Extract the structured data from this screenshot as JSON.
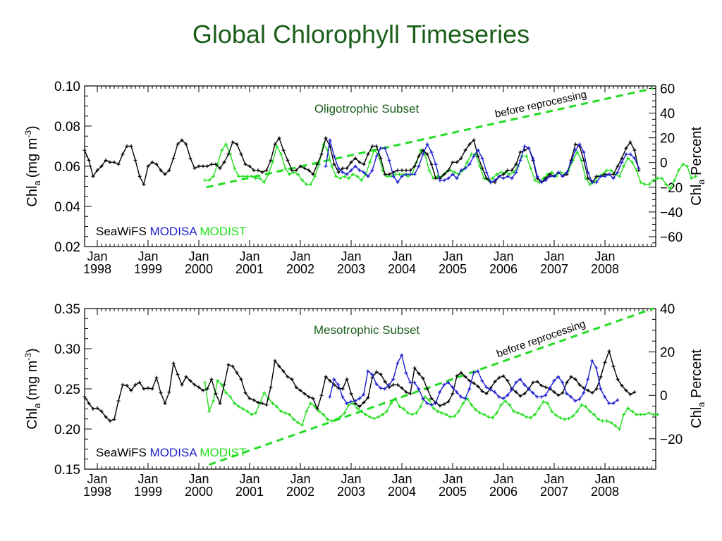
{
  "page": {
    "title": "Global Chlorophyll Timeseries"
  },
  "colors": {
    "title": "#1a5e1a",
    "seawifs": "#000000",
    "modisa": "#1c1ccf",
    "modist": "#22e01e",
    "reprocessing": "#22dd22",
    "subset_title": "#1a5e1a"
  },
  "chart_data": [
    {
      "type": "line",
      "title": "Oligotrophic Subset",
      "ylabel": "Chl",
      "ylabel_sub": "a",
      "ylabel_unit": "(mg m",
      "ylabel_sup": "-3",
      "ylabel_close": ")",
      "ylim": [
        0.02,
        0.1
      ],
      "yticks": [
        0.02,
        0.04,
        0.06,
        0.08,
        0.1
      ],
      "ytick_labels": [
        "0.02",
        "0.04",
        "0.06",
        "0.08",
        "0.10"
      ],
      "y2label": "Chl",
      "y2label_sub": "a",
      "y2label_rest": " Percent",
      "y2lim": [
        -68,
        62
      ],
      "y2ticks": [
        -60,
        -40,
        -20,
        0,
        20,
        40,
        60
      ],
      "y2tick_labels": [
        "−60",
        "−40",
        "−20",
        "0",
        "20",
        "40",
        "60"
      ],
      "xlim": [
        1997.75,
        2009.0
      ],
      "xticks": [
        1998,
        1999,
        2000,
        2001,
        2002,
        2003,
        2004,
        2005,
        2006,
        2007,
        2008
      ],
      "xtick_month": "Jan",
      "xtick_years": [
        "1998",
        "1999",
        "2000",
        "2001",
        "2002",
        "2003",
        "2004",
        "2005",
        "2006",
        "2007",
        "2008"
      ],
      "legend": {
        "items": [
          "SeaWiFS",
          "MODISA",
          "MODIST"
        ],
        "position": "bottom-left"
      },
      "annotation": {
        "text": "before reprocessing",
        "start": [
          2000.15,
          -20
        ],
        "end": [
          2008.95,
          60
        ]
      },
      "series": [
        {
          "name": "SeaWiFS",
          "start": 1997.75,
          "values": [
            0.068,
            0.063,
            0.055,
            0.058,
            0.06,
            0.063,
            0.062,
            0.062,
            0.061,
            0.066,
            0.07,
            0.07,
            0.063,
            0.055,
            0.051,
            0.06,
            0.062,
            0.061,
            0.058,
            0.056,
            0.058,
            0.064,
            0.071,
            0.073,
            0.071,
            0.064,
            0.059,
            0.06,
            0.06,
            0.06,
            0.061,
            0.061,
            0.059,
            0.062,
            0.066,
            0.072,
            0.071,
            0.066,
            0.061,
            0.06,
            0.058,
            0.058,
            0.057,
            0.058,
            0.063,
            0.071,
            0.074,
            0.068,
            0.063,
            0.058,
            0.058,
            0.06,
            0.059,
            0.058,
            0.056,
            0.061,
            0.066,
            0.074,
            0.07,
            0.061,
            0.057,
            0.059,
            0.059,
            0.062,
            0.064,
            0.062,
            0.061,
            0.066,
            0.07,
            0.07,
            0.064,
            0.056,
            0.056,
            0.057,
            0.058,
            0.058,
            0.058,
            0.058,
            0.06,
            0.065,
            0.068,
            0.066,
            0.061,
            0.054,
            0.054,
            0.056,
            0.058,
            0.062,
            0.062,
            0.064,
            0.068,
            0.071,
            0.073,
            0.065,
            0.059,
            0.054,
            0.052,
            0.052,
            0.055,
            0.056,
            0.058,
            0.058,
            0.061,
            0.067,
            0.068,
            0.069,
            0.063,
            0.054,
            0.052,
            0.054,
            0.056,
            0.055,
            0.057,
            0.055,
            0.056,
            0.063,
            0.071,
            0.07,
            0.063,
            0.054,
            0.052,
            0.055,
            0.055,
            0.056,
            0.056,
            0.056,
            0.06,
            0.064,
            0.069,
            0.072,
            0.068,
            0.058
          ]
        },
        {
          "name": "MODISA",
          "start": 2002.5,
          "values": [
            0.06,
            0.073,
            0.065,
            0.059,
            0.057,
            0.056,
            0.058,
            0.06,
            0.058,
            0.057,
            0.055,
            0.058,
            0.065,
            0.069,
            0.069,
            0.063,
            0.055,
            0.052,
            0.055,
            0.056,
            0.056,
            0.056,
            0.06,
            0.066,
            0.071,
            0.067,
            0.061,
            0.053,
            0.053,
            0.054,
            0.056,
            0.054,
            0.058,
            0.059,
            0.061,
            0.065,
            0.068,
            0.064,
            0.057,
            0.052,
            0.053,
            0.055,
            0.054,
            0.055,
            0.054,
            0.057,
            0.063,
            0.07,
            0.069,
            0.064,
            0.055,
            0.052,
            0.053,
            0.055,
            0.055,
            0.057,
            0.055,
            0.057,
            0.062,
            0.068,
            0.071,
            0.067,
            0.057,
            0.052,
            0.052,
            0.055,
            0.055,
            0.056,
            0.054,
            0.057,
            0.062,
            0.066,
            0.066,
            0.064,
            0.059
          ]
        },
        {
          "name": "MODIST",
          "start": 2000.12,
          "values": [
            0.053,
            0.053,
            0.055,
            0.061,
            0.068,
            0.071,
            0.066,
            0.059,
            0.055,
            0.055,
            0.055,
            0.055,
            0.054,
            0.054,
            0.052,
            0.056,
            0.062,
            0.07,
            0.066,
            0.059,
            0.056,
            0.057,
            0.056,
            0.053,
            0.051,
            0.051,
            0.055,
            0.061,
            0.071,
            0.068,
            0.06,
            0.055,
            0.054,
            0.055,
            0.054,
            0.056,
            0.055,
            0.053,
            0.056,
            0.062,
            0.068,
            0.066,
            0.058,
            0.055,
            0.055,
            0.056,
            0.056,
            0.056,
            0.055,
            0.056,
            0.062,
            0.068,
            0.066,
            0.058,
            0.054,
            0.055,
            0.055,
            0.057,
            0.058,
            0.057,
            0.056,
            0.058,
            0.062,
            0.066,
            0.066,
            0.06,
            0.054,
            0.053,
            0.054,
            0.056,
            0.057,
            0.057,
            0.056,
            0.057,
            0.06,
            0.065,
            0.065,
            0.059,
            0.053,
            0.052,
            0.054,
            0.056,
            0.057,
            0.055,
            0.057,
            0.056,
            0.058,
            0.063,
            0.067,
            0.063,
            0.054,
            0.051,
            0.052,
            0.055,
            0.056,
            0.058,
            0.058,
            0.056,
            0.055,
            0.06,
            0.064,
            0.062,
            0.058,
            0.052,
            0.051,
            0.051,
            0.053,
            0.054,
            0.054,
            0.051,
            0.049,
            0.053,
            0.058,
            0.061,
            0.06,
            0.054,
            0.055
          ]
        }
      ]
    },
    {
      "type": "line",
      "title": "Mesotrophic Subset",
      "ylabel": "Chl",
      "ylabel_sub": "a",
      "ylabel_unit": "(mg m",
      "ylabel_sup": "-3",
      "ylabel_close": ")",
      "ylim": [
        0.15,
        0.35
      ],
      "yticks": [
        0.15,
        0.2,
        0.25,
        0.3,
        0.35
      ],
      "ytick_labels": [
        "0.15",
        "0.20",
        "0.25",
        "0.30",
        "0.35"
      ],
      "y2label": "Chl",
      "y2label_sub": "a",
      "y2label_rest": " Percent",
      "y2lim": [
        -34,
        40
      ],
      "y2ticks": [
        -20,
        0,
        20,
        40
      ],
      "y2tick_labels": [
        "−20",
        "0",
        "20",
        "40"
      ],
      "xlim": [
        1997.75,
        2009.0
      ],
      "xticks": [
        1998,
        1999,
        2000,
        2001,
        2002,
        2003,
        2004,
        2005,
        2006,
        2007,
        2008
      ],
      "xtick_month": "Jan",
      "xtick_years": [
        "1998",
        "1999",
        "2000",
        "2001",
        "2002",
        "2003",
        "2004",
        "2005",
        "2006",
        "2007",
        "2008"
      ],
      "legend": {
        "items": [
          "SeaWiFS",
          "MODISA",
          "MODIST"
        ],
        "position": "bottom-left"
      },
      "annotation": {
        "text": "before reprocessing",
        "start": [
          2000.2,
          -32
        ],
        "end": [
          2008.95,
          40
        ]
      },
      "series": [
        {
          "name": "SeaWiFS",
          "start": 1997.75,
          "values": [
            0.24,
            0.232,
            0.225,
            0.226,
            0.222,
            0.215,
            0.21,
            0.212,
            0.235,
            0.255,
            0.254,
            0.248,
            0.255,
            0.258,
            0.25,
            0.251,
            0.25,
            0.264,
            0.245,
            0.232,
            0.246,
            0.282,
            0.268,
            0.255,
            0.265,
            0.26,
            0.255,
            0.252,
            0.248,
            0.25,
            0.262,
            0.244,
            0.232,
            0.255,
            0.28,
            0.278,
            0.27,
            0.262,
            0.245,
            0.238,
            0.236,
            0.233,
            0.232,
            0.23,
            0.252,
            0.285,
            0.278,
            0.272,
            0.265,
            0.262,
            0.252,
            0.248,
            0.244,
            0.24,
            0.238,
            0.225,
            0.242,
            0.265,
            0.26,
            0.255,
            0.251,
            0.25,
            0.262,
            0.244,
            0.232,
            0.228,
            0.233,
            0.239,
            0.264,
            0.271,
            0.268,
            0.259,
            0.252,
            0.255,
            0.255,
            0.251,
            0.246,
            0.244,
            0.276,
            0.269,
            0.263,
            0.25,
            0.238,
            0.233,
            0.229,
            0.231,
            0.234,
            0.244,
            0.266,
            0.27,
            0.265,
            0.26,
            0.257,
            0.253,
            0.247,
            0.244,
            0.251,
            0.259,
            0.264,
            0.266,
            0.26,
            0.25,
            0.246,
            0.241,
            0.244,
            0.25,
            0.258,
            0.259,
            0.254,
            0.252,
            0.25,
            0.246,
            0.242,
            0.245,
            0.258,
            0.265,
            0.262,
            0.255,
            0.251,
            0.248,
            0.245,
            0.25,
            0.265,
            0.283,
            0.297,
            0.278,
            0.262,
            0.254,
            0.248,
            0.243,
            0.246
          ]
        },
        {
          "name": "MODISA",
          "start": 2002.58,
          "values": [
            0.24,
            0.262,
            0.255,
            0.24,
            0.232,
            0.234,
            0.235,
            0.238,
            0.243,
            0.272,
            0.268,
            0.256,
            0.251,
            0.25,
            0.255,
            0.262,
            0.282,
            0.292,
            0.27,
            0.258,
            0.258,
            0.25,
            0.238,
            0.232,
            0.23,
            0.232,
            0.246,
            0.255,
            0.258,
            0.252,
            0.246,
            0.24,
            0.238,
            0.25,
            0.27,
            0.272,
            0.26,
            0.252,
            0.249,
            0.246,
            0.24,
            0.238,
            0.242,
            0.249,
            0.258,
            0.262,
            0.255,
            0.25,
            0.245,
            0.24,
            0.24,
            0.242,
            0.251,
            0.26,
            0.265,
            0.258,
            0.244,
            0.24,
            0.235,
            0.237,
            0.245,
            0.262,
            0.285,
            0.276,
            0.25,
            0.24,
            0.232,
            0.232,
            0.236
          ]
        },
        {
          "name": "MODIST",
          "start": 2000.12,
          "values": [
            0.258,
            0.222,
            0.235,
            0.26,
            0.255,
            0.245,
            0.24,
            0.232,
            0.228,
            0.225,
            0.222,
            0.218,
            0.22,
            0.232,
            0.245,
            0.238,
            0.232,
            0.228,
            0.222,
            0.22,
            0.218,
            0.212,
            0.208,
            0.205,
            0.222,
            0.232,
            0.228,
            0.222,
            0.218,
            0.212,
            0.21,
            0.212,
            0.215,
            0.22,
            0.23,
            0.232,
            0.226,
            0.222,
            0.218,
            0.215,
            0.213,
            0.215,
            0.218,
            0.222,
            0.232,
            0.238,
            0.228,
            0.225,
            0.22,
            0.218,
            0.22,
            0.228,
            0.24,
            0.236,
            0.226,
            0.222,
            0.22,
            0.218,
            0.215,
            0.216,
            0.222,
            0.232,
            0.238,
            0.23,
            0.224,
            0.22,
            0.218,
            0.215,
            0.214,
            0.22,
            0.23,
            0.235,
            0.23,
            0.222,
            0.22,
            0.218,
            0.215,
            0.214,
            0.218,
            0.226,
            0.234,
            0.232,
            0.222,
            0.217,
            0.214,
            0.212,
            0.213,
            0.216,
            0.222,
            0.23,
            0.228,
            0.222,
            0.218,
            0.212,
            0.21,
            0.21,
            0.208,
            0.204,
            0.2,
            0.218,
            0.226,
            0.222,
            0.218,
            0.218,
            0.218,
            0.22,
            0.218,
            0.218
          ]
        }
      ]
    }
  ]
}
